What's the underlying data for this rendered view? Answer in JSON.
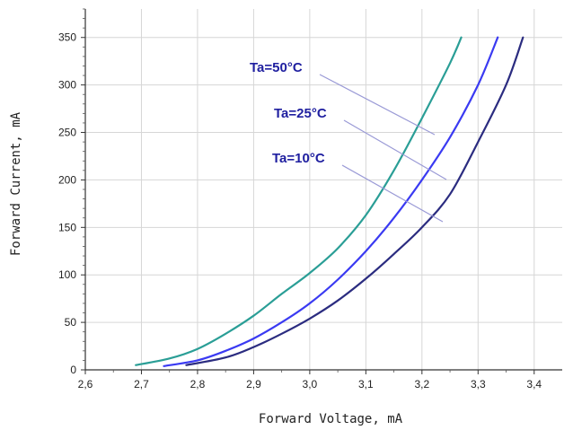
{
  "chart_data": {
    "type": "line",
    "title": "",
    "xlabel": "Forward Voltage, mA",
    "ylabel": "Forward Current, mA",
    "xlim": [
      2.6,
      3.45
    ],
    "ylim": [
      0,
      380
    ],
    "x_ticks": [
      "2,6",
      "2,7",
      "2,8",
      "2,9",
      "3,0",
      "3,1",
      "3,2",
      "3,3",
      "3,4"
    ],
    "y_ticks": [
      "0",
      "50",
      "100",
      "150",
      "200",
      "250",
      "300",
      "350"
    ],
    "grid": true,
    "legend": "none",
    "series": [
      {
        "name": "Ta=50°C",
        "color": "#2a9e96",
        "x": [
          2.69,
          2.75,
          2.8,
          2.85,
          2.9,
          2.95,
          3.0,
          3.05,
          3.1,
          3.15,
          3.2,
          3.25,
          3.27
        ],
        "y": [
          5,
          12,
          22,
          38,
          57,
          80,
          102,
          128,
          163,
          210,
          265,
          323,
          350
        ]
      },
      {
        "name": "Ta=25°C",
        "color": "#3a3af2",
        "x": [
          2.74,
          2.8,
          2.85,
          2.9,
          2.95,
          3.0,
          3.05,
          3.1,
          3.15,
          3.2,
          3.25,
          3.3,
          3.335
        ],
        "y": [
          4,
          10,
          20,
          33,
          50,
          70,
          95,
          125,
          160,
          200,
          245,
          300,
          350
        ]
      },
      {
        "name": "Ta=10°C",
        "color": "#2b2c80",
        "x": [
          2.78,
          2.85,
          2.9,
          2.95,
          3.0,
          3.05,
          3.1,
          3.15,
          3.2,
          3.25,
          3.3,
          3.35,
          3.38
        ],
        "y": [
          5,
          13,
          24,
          38,
          54,
          73,
          96,
          122,
          150,
          185,
          240,
          300,
          350
        ]
      }
    ],
    "annotations": [
      {
        "text": "Ta=50°C",
        "series": 0
      },
      {
        "text": "Ta=25°C",
        "series": 1
      },
      {
        "text": "Ta=10°C",
        "series": 2
      }
    ]
  }
}
